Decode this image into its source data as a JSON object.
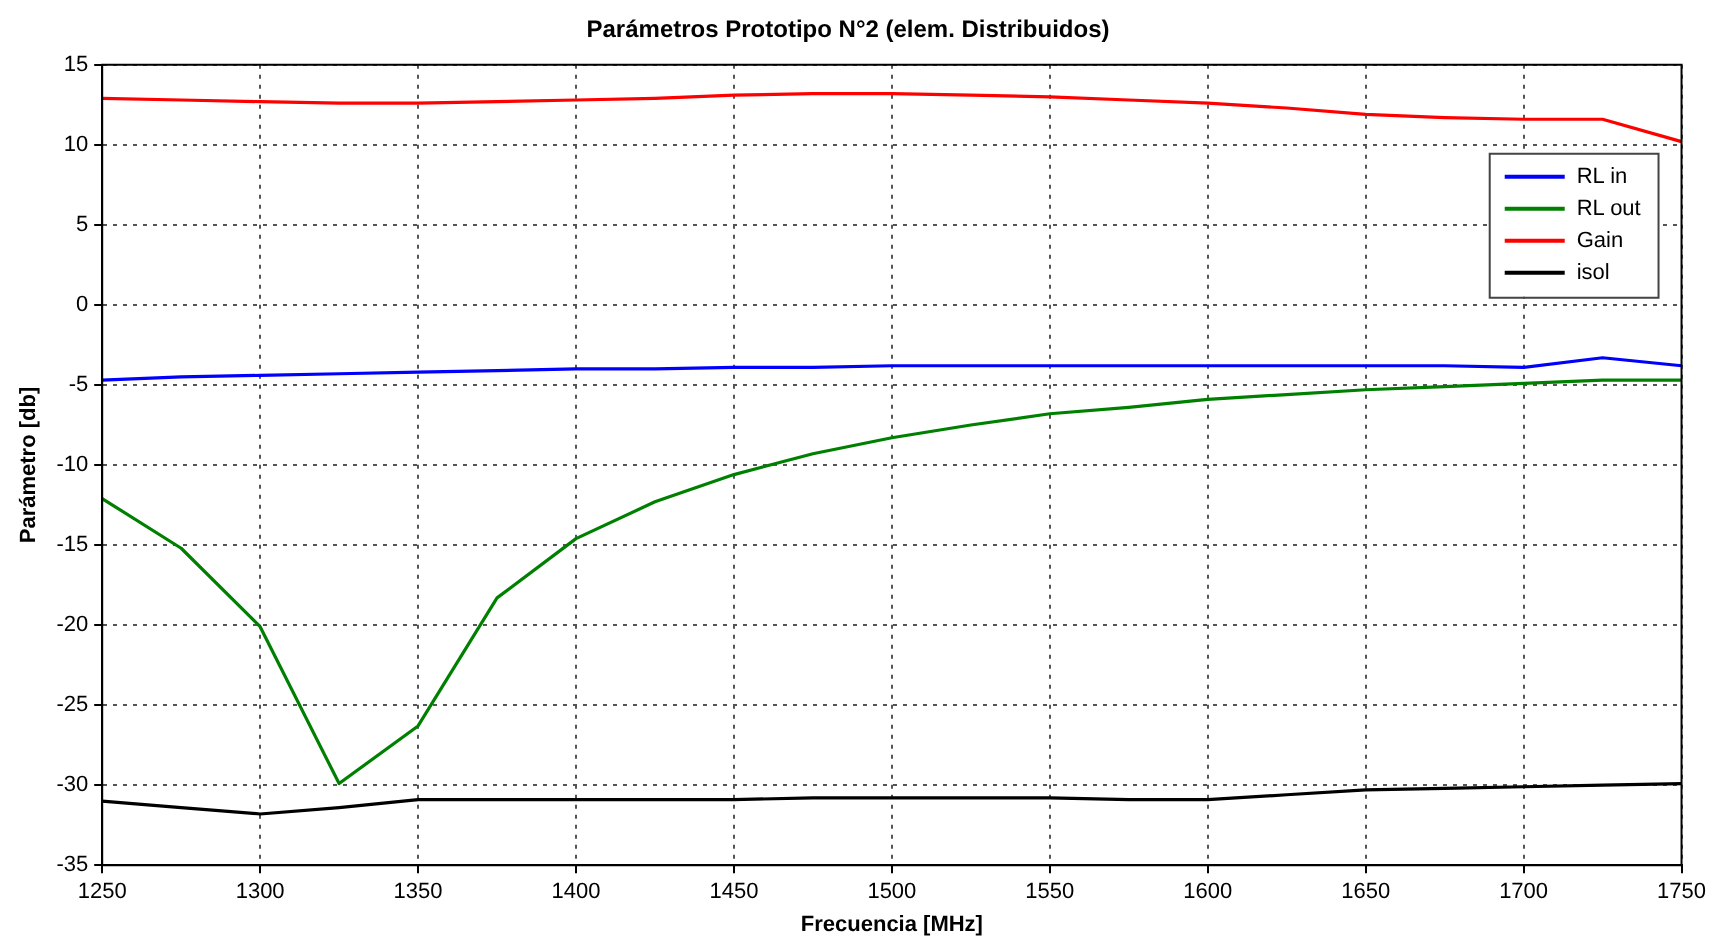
{
  "chart_data": {
    "type": "line",
    "title": "Parámetros Prototipo N°2 (elem. Distribuidos)",
    "xlabel": "Frecuencia [MHz]",
    "ylabel": "Parámetro [db]",
    "x": [
      1250,
      1275,
      1300,
      1325,
      1350,
      1375,
      1400,
      1425,
      1450,
      1475,
      1500,
      1525,
      1550,
      1575,
      1600,
      1625,
      1650,
      1675,
      1700,
      1725,
      1750
    ],
    "series": [
      {
        "name": "RL in",
        "color": "#0000ff",
        "values": [
          -4.7,
          -4.5,
          -4.4,
          -4.3,
          -4.2,
          -4.1,
          -4.0,
          -4.0,
          -3.9,
          -3.9,
          -3.8,
          -3.8,
          -3.8,
          -3.8,
          -3.8,
          -3.8,
          -3.8,
          -3.8,
          -3.9,
          -3.3,
          -3.8
        ]
      },
      {
        "name": "RL out",
        "color": "#008000",
        "values": [
          -12.1,
          -15.2,
          -20.1,
          -29.9,
          -26.3,
          -18.3,
          -14.6,
          -12.3,
          -10.6,
          -9.3,
          -8.3,
          -7.5,
          -6.8,
          -6.4,
          -5.9,
          -5.6,
          -5.3,
          -5.1,
          -4.9,
          -4.7,
          -4.7
        ]
      },
      {
        "name": "Gain",
        "color": "#ff0000",
        "values": [
          12.9,
          12.8,
          12.7,
          12.6,
          12.6,
          12.7,
          12.8,
          12.9,
          13.1,
          13.2,
          13.2,
          13.1,
          13.0,
          12.8,
          12.6,
          12.3,
          11.9,
          11.7,
          11.6,
          11.6,
          10.2
        ]
      },
      {
        "name": "isol",
        "color": "#000000",
        "values": [
          -31.0,
          -31.4,
          -31.8,
          -31.4,
          -30.9,
          -30.9,
          -30.9,
          -30.9,
          -30.9,
          -30.8,
          -30.8,
          -30.8,
          -30.8,
          -30.9,
          -30.9,
          -30.6,
          -30.3,
          -30.2,
          -30.1,
          -30.0,
          -29.9
        ]
      }
    ],
    "xlim": [
      1250,
      1750
    ],
    "xticks": [
      1250,
      1300,
      1350,
      1400,
      1450,
      1500,
      1550,
      1600,
      1650,
      1700,
      1750
    ],
    "ylim": [
      -35,
      15
    ],
    "yticks": [
      -35,
      -30,
      -25,
      -20,
      -15,
      -10,
      -5,
      0,
      5,
      10,
      15
    ],
    "grid": true,
    "legend": "top right",
    "marker": "none",
    "line_style": "solid"
  }
}
